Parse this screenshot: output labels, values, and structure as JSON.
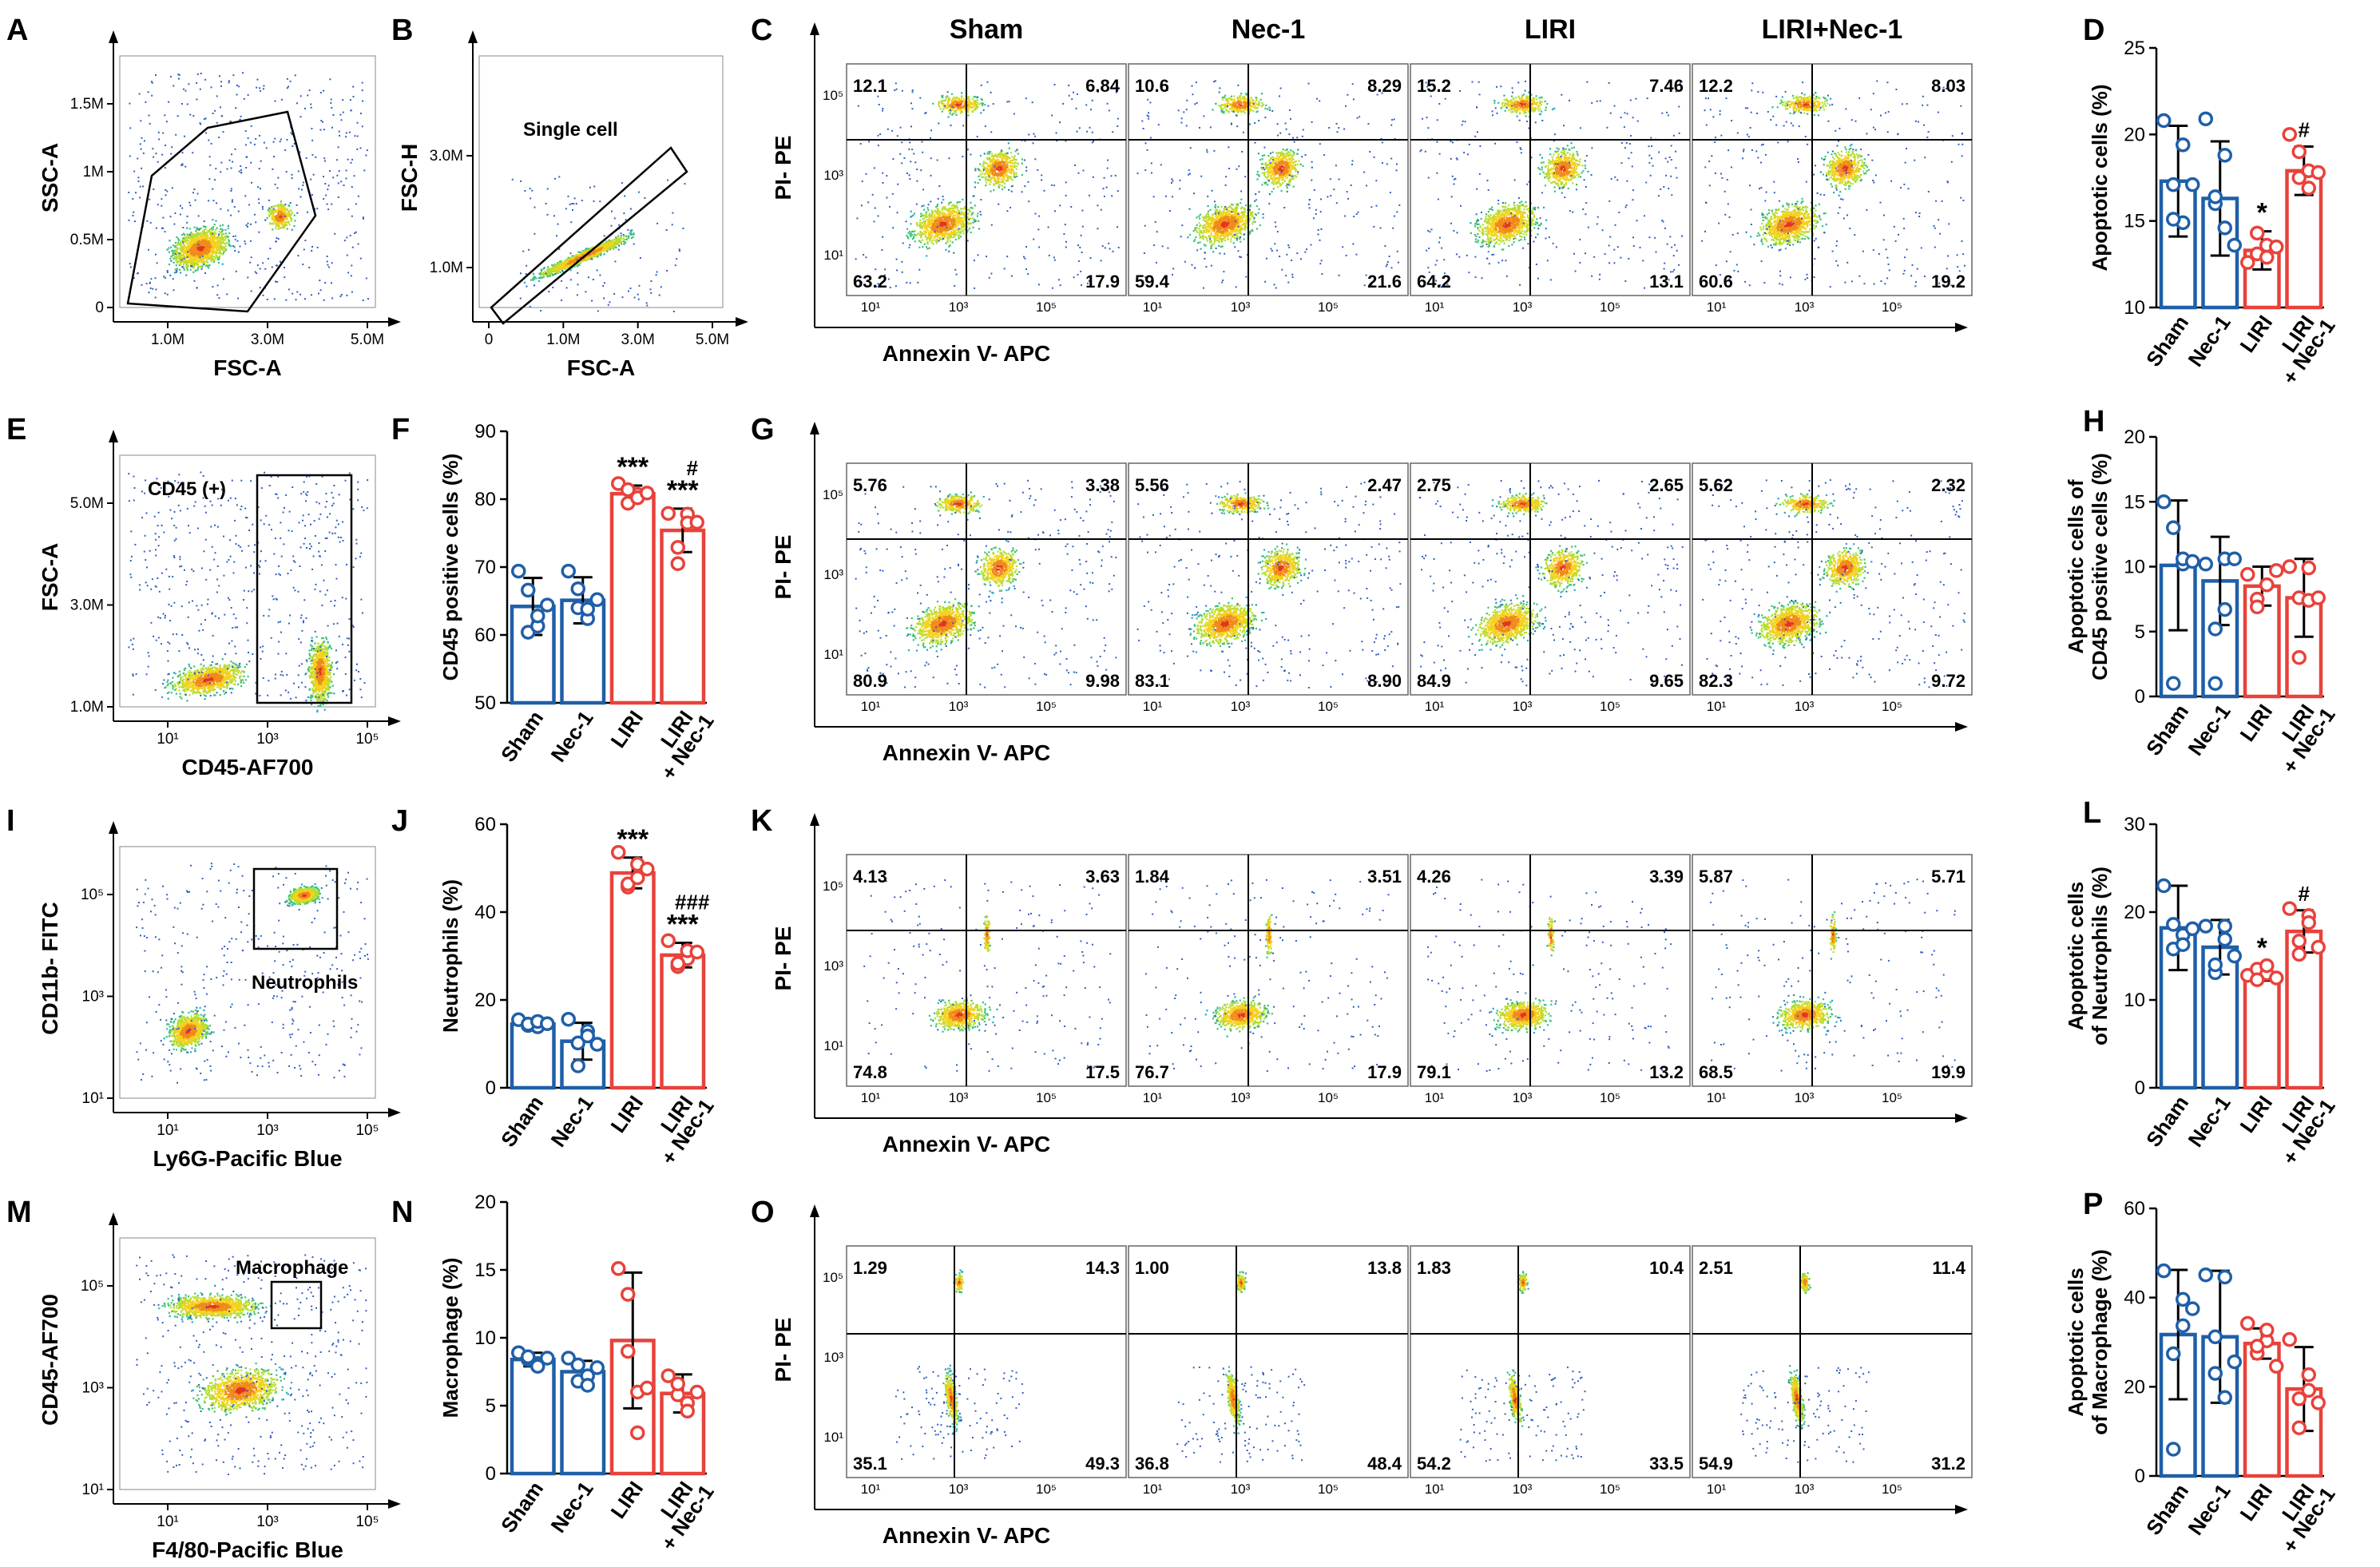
{
  "colors": {
    "blue": "#1f5fa8",
    "red": "#e8423b",
    "axis": "#000000",
    "grid": "#000000"
  },
  "rows": [
    {
      "gate": {
        "letter": "A",
        "xlabel": "FSC-A",
        "ylabel": "SSC-A",
        "xticks": [
          "1.0M",
          "3.0M",
          "5.0M"
        ],
        "yticks": [
          "1.5M",
          "1M",
          "0.5M",
          "0"
        ],
        "label": "",
        "type": "poly"
      },
      "gate2": {
        "letter": "B",
        "xlabel": "FSC-A",
        "ylabel": "FSC-H",
        "xticks": [
          "0",
          "1.0M",
          "3.0M",
          "5.0M"
        ],
        "yticks": [
          "3.0M",
          "1.0M"
        ],
        "label": "Single cell",
        "type": "diag"
      },
      "quad": {
        "letter": "C",
        "xlabel": "Annexin V- APC",
        "ylabel": "PI- PE",
        "show_titles": true,
        "plots": [
          {
            "title": "Sham",
            "ul": "12.1",
            "ur": "6.84",
            "ll": "63.2",
            "lr": "17.9"
          },
          {
            "title": "Nec-1",
            "ul": "10.6",
            "ur": "8.29",
            "ll": "59.4",
            "lr": "21.6"
          },
          {
            "title": "LIRI",
            "ul": "15.2",
            "ur": "7.46",
            "ll": "64.2",
            "lr": "13.1"
          },
          {
            "title": "LIRI+Nec-1",
            "ul": "12.2",
            "ur": "8.03",
            "ll": "60.6",
            "lr": "19.2"
          }
        ]
      },
      "bar": {
        "letter": "D",
        "ylabel": "Apoptotic cells (%)",
        "ylim": [
          10,
          25
        ],
        "yticks": [
          "10",
          "15",
          "20",
          "25"
        ]
      }
    },
    {
      "gate": {
        "letter": "E",
        "xlabel": "CD45-AF700",
        "ylabel": "FSC-A",
        "xticks": [
          "10¹",
          "10³",
          "10⁵"
        ],
        "yticks": [
          "5.0M",
          "3.0M",
          "1.0M"
        ],
        "label": "CD45 (+)",
        "type": "rect"
      },
      "gate2": {
        "letter": "F"
      },
      "quad": {
        "letter": "G",
        "xlabel": "Annexin V- APC",
        "ylabel": "PI- PE",
        "show_titles": false,
        "plots": [
          {
            "title": "",
            "ul": "5.76",
            "ur": "3.38",
            "ll": "80.9",
            "lr": "9.98"
          },
          {
            "title": "",
            "ul": "5.56",
            "ur": "2.47",
            "ll": "83.1",
            "lr": "8.90"
          },
          {
            "title": "",
            "ul": "2.75",
            "ur": "2.65",
            "ll": "84.9",
            "lr": "9.65"
          },
          {
            "title": "",
            "ul": "5.62",
            "ur": "2.32",
            "ll": "82.3",
            "lr": "9.72"
          }
        ]
      },
      "bar": {
        "letter": "H",
        "ylabel": "Apoptotic cells of CD45 positive cells (%)",
        "ylim": [
          0,
          20
        ],
        "yticks": [
          "0",
          "5",
          "10",
          "15",
          "20"
        ]
      }
    },
    {
      "gate": {
        "letter": "I",
        "xlabel": "Ly6G-Pacific Blue",
        "ylabel": "CD11b- FITC",
        "xticks": [
          "10¹",
          "10³",
          "10⁵"
        ],
        "yticks": [
          "10⁵",
          "10³",
          "10¹"
        ],
        "label": "Neutrophils",
        "type": "rect2"
      },
      "gate2": {
        "letter": "J"
      },
      "quad": {
        "letter": "K",
        "xlabel": "Annexin V- APC",
        "ylabel": "PI- PE",
        "show_titles": false,
        "plots": [
          {
            "title": "",
            "ul": "4.13",
            "ur": "3.63",
            "ll": "74.8",
            "lr": "17.5"
          },
          {
            "title": "",
            "ul": "1.84",
            "ur": "3.51",
            "ll": "76.7",
            "lr": "17.9"
          },
          {
            "title": "",
            "ul": "4.26",
            "ur": "3.39",
            "ll": "79.1",
            "lr": "13.2"
          },
          {
            "title": "",
            "ul": "5.87",
            "ur": "5.71",
            "ll": "68.5",
            "lr": "19.9"
          }
        ]
      },
      "bar": {
        "letter": "L",
        "ylabel": "Apoptotic cells of Neutrophils (%)",
        "ylim": [
          0,
          30
        ],
        "yticks": [
          "0",
          "10",
          "20",
          "30"
        ]
      }
    },
    {
      "gate": {
        "letter": "M",
        "xlabel": "F4/80-Pacific Blue",
        "ylabel": "CD45-AF700",
        "xticks": [
          "10¹",
          "10³",
          "10⁵"
        ],
        "yticks": [
          "10⁵",
          "10³",
          "10¹"
        ],
        "label": "Macrophage",
        "type": "rect3"
      },
      "gate2": {
        "letter": "N"
      },
      "quad": {
        "letter": "O",
        "xlabel": "Annexin V- APC",
        "ylabel": "PI- PE",
        "show_titles": false,
        "plots": [
          {
            "title": "",
            "ul": "1.29",
            "ur": "14.3",
            "ll": "35.1",
            "lr": "49.3"
          },
          {
            "title": "",
            "ul": "1.00",
            "ur": "13.8",
            "ll": "36.8",
            "lr": "48.4"
          },
          {
            "title": "",
            "ul": "1.83",
            "ur": "10.4",
            "ll": "54.2",
            "lr": "33.5"
          },
          {
            "title": "",
            "ul": "2.51",
            "ur": "11.4",
            "ll": "54.9",
            "lr": "31.2"
          }
        ]
      },
      "bar": {
        "letter": "P",
        "ylabel": "Apoptotic cells of Macrophage (%)",
        "ylim": [
          0,
          60
        ],
        "yticks": [
          "0",
          "20",
          "40",
          "60"
        ]
      }
    }
  ],
  "chart_data": [
    {
      "id": "D",
      "type": "bar",
      "title": "",
      "ylabel": "Apoptotic cells (%)",
      "ylim": [
        10,
        25
      ],
      "categories": [
        "Sham",
        "Nec-1",
        "LIRI",
        "LIRI + Nec-1"
      ],
      "means": [
        17.3,
        16.3,
        13.3,
        17.9
      ],
      "sd": [
        3.2,
        3.3,
        1.1,
        1.4
      ],
      "points": [
        [
          20.8,
          17.1,
          14.9,
          15.1,
          19.4,
          17.1
        ],
        [
          20.9,
          16.0,
          14.6,
          16.4,
          18.8,
          13.6
        ],
        [
          12.6,
          13.1,
          13.6,
          14.3,
          12.9,
          13.5
        ],
        [
          20.0,
          17.5,
          17.9,
          19.0,
          16.9,
          17.8
        ]
      ],
      "significance": [
        "",
        "",
        "*",
        "#"
      ]
    },
    {
      "id": "F",
      "type": "bar",
      "title": "",
      "ylabel": "CD45 positive cells (%)",
      "ylim": [
        50,
        90
      ],
      "categories": [
        "Sham",
        "Nec-1",
        "LIRI",
        "LIRI + Nec-1"
      ],
      "means": [
        64.2,
        65.1,
        80.8,
        75.4
      ],
      "sd": [
        4.2,
        3.4,
        1.2,
        3.2
      ],
      "points": [
        [
          69.4,
          60.4,
          61.3,
          66.6,
          62.8,
          64.4
        ],
        [
          69.4,
          64.0,
          62.4,
          66.8,
          63.8,
          65.2
        ],
        [
          82.3,
          79.4,
          80.7,
          81.4,
          80.2,
          80.9
        ],
        [
          77.9,
          72.9,
          77.8,
          70.5,
          76.5,
          76.6
        ]
      ],
      "significance": [
        "",
        "",
        "***",
        "# ***"
      ]
    },
    {
      "id": "H",
      "type": "bar",
      "title": "",
      "ylabel": "Apoptotic cells of CD45 positive cells (%)",
      "ylim": [
        0,
        20
      ],
      "categories": [
        "Sham",
        "Nec-1",
        "LIRI",
        "LIRI + Nec-1"
      ],
      "means": [
        10.1,
        8.9,
        8.5,
        7.6
      ],
      "sd": [
        5.0,
        3.4,
        1.5,
        3.0
      ],
      "points": [
        [
          15.0,
          1.0,
          10.2,
          13.0,
          10.6,
          10.4
        ],
        [
          10.2,
          5.2,
          10.6,
          1.0,
          6.7,
          10.6
        ],
        [
          9.4,
          7.5,
          8.6,
          6.9,
          8.6,
          9.7
        ],
        [
          10.0,
          7.6,
          9.9,
          3.0,
          7.4,
          7.6
        ]
      ],
      "significance": [
        "",
        "",
        "",
        ""
      ]
    },
    {
      "id": "J",
      "type": "bar",
      "title": "",
      "ylabel": "Neutrophils (%)",
      "ylim": [
        0,
        60
      ],
      "categories": [
        "Sham",
        "Nec-1",
        "LIRI",
        "LIRI + Nec-1"
      ],
      "means": [
        14.5,
        10.6,
        48.9,
        30.2
      ],
      "sd": [
        1.0,
        4.2,
        3.5,
        2.8
      ],
      "points": [
        [
          15.5,
          14.2,
          13.9,
          14.5,
          15.1,
          14.6
        ],
        [
          15.6,
          10.2,
          12.9,
          5.0,
          11.8,
          9.9
        ],
        [
          53.6,
          45.7,
          50.9,
          46.4,
          47.8,
          49.8
        ],
        [
          33.5,
          27.6,
          29.4,
          28.3,
          31.2,
          30.9
        ]
      ],
      "significance": [
        "",
        "",
        "***",
        "### ***"
      ]
    },
    {
      "id": "L",
      "type": "bar",
      "title": "",
      "ylabel": "Apoptotic cells of Neutrophils (%)",
      "ylim": [
        0,
        30
      ],
      "categories": [
        "Sham",
        "Nec-1",
        "LIRI",
        "LIRI + Nec-1"
      ],
      "means": [
        18.2,
        16.0,
        13.0,
        17.8
      ],
      "sd": [
        4.8,
        3.1,
        0.8,
        2.4
      ],
      "points": [
        [
          23.0,
          15.8,
          17.4,
          18.6,
          16.3,
          18.1
        ],
        [
          18.4,
          13.1,
          18.4,
          14.0,
          16.9,
          15.0
        ],
        [
          12.8,
          13.5,
          13.0,
          12.3,
          13.9,
          12.5
        ],
        [
          20.4,
          15.2,
          19.6,
          16.7,
          18.8,
          16.0
        ]
      ],
      "significance": [
        "",
        "",
        "*",
        "#"
      ]
    },
    {
      "id": "N",
      "type": "bar",
      "title": "",
      "ylabel": "Macrophage (%)",
      "ylim": [
        0,
        20
      ],
      "categories": [
        "Sham",
        "Nec-1",
        "LIRI",
        "LIRI + Nec-1"
      ],
      "means": [
        8.4,
        7.5,
        9.8,
        5.9
      ],
      "sd": [
        0.5,
        0.8,
        5.0,
        1.4
      ],
      "points": [
        [
          8.9,
          8.4,
          8.1,
          8.6,
          7.9,
          8.5
        ],
        [
          8.5,
          6.8,
          7.2,
          8.0,
          6.5,
          7.8
        ],
        [
          15.1,
          13.2,
          6.0,
          9.0,
          3.0,
          6.3
        ],
        [
          7.2,
          5.8,
          5.2,
          6.6,
          4.6,
          6.0
        ]
      ],
      "significance": [
        "",
        "",
        "",
        ""
      ]
    },
    {
      "id": "P",
      "type": "bar",
      "title": "",
      "ylabel": "Apoptotic cells of Macrophage (%)",
      "ylim": [
        0,
        60
      ],
      "categories": [
        "Sham",
        "Nec-1",
        "LIRI",
        "LIRI + Nec-1"
      ],
      "means": [
        31.7,
        31.2,
        29.7,
        19.5
      ],
      "sd": [
        14.5,
        14.8,
        3.4,
        9.4
      ],
      "points": [
        [
          46.0,
          27.4,
          33.7,
          6.0,
          39.6,
          37.5
        ],
        [
          45.1,
          23.0,
          17.6,
          31.2,
          44.6,
          25.6
        ],
        [
          34.2,
          27.5,
          30.3,
          29.1,
          32.7,
          24.6
        ],
        [
          30.6,
          10.8,
          22.7,
          17.3,
          19.2,
          16.4
        ]
      ],
      "significance": [
        "",
        "",
        "",
        ""
      ]
    }
  ]
}
